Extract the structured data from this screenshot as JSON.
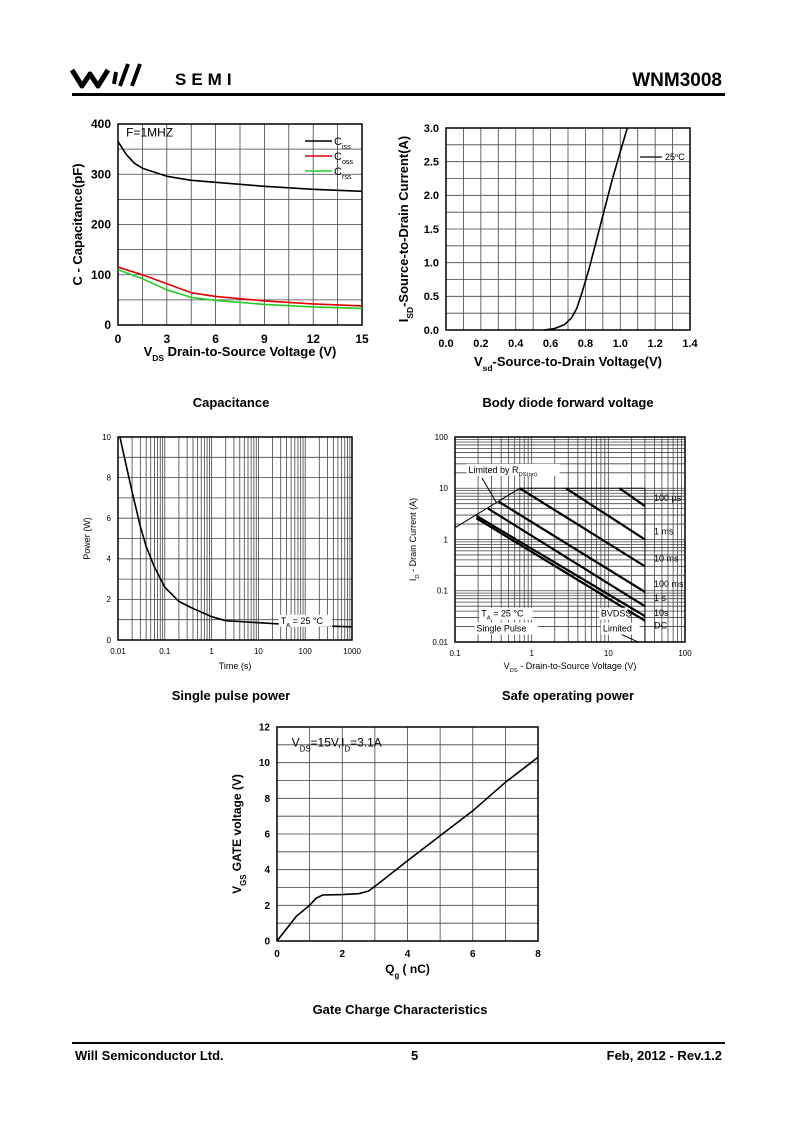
{
  "header": {
    "logo_text": "SEMI",
    "part_number": "WNM3008"
  },
  "footer": {
    "company": "Will Semiconductor Ltd.",
    "page": "5",
    "date_rev": "Feb, 2012 - Rev.1.2"
  },
  "captions": [
    "Capacitance",
    "Body diode forward voltage",
    "Single pulse power",
    "Safe operating power",
    "Gate Charge Characteristics"
  ],
  "chart_data": [
    {
      "type": "line",
      "title": "Capacitance",
      "xlabel": [
        {
          "t": "V"
        },
        {
          "t": "DS",
          "sub": true
        },
        {
          "t": " Drain-to-Source Voltage (V)"
        }
      ],
      "ylabel": [
        {
          "t": "C - Capacitance(pF)"
        }
      ],
      "xscale": "linear",
      "yscale": "linear",
      "xlim": [
        0,
        15
      ],
      "ylim": [
        0,
        400
      ],
      "xticks": [
        0,
        3,
        6,
        9,
        12,
        15
      ],
      "yticks": [
        0,
        100,
        200,
        300,
        400
      ],
      "grid": true,
      "legend": "top-right",
      "annotations": [
        {
          "text": "F=1MHZ",
          "x": 0.5,
          "y": 375
        }
      ],
      "series": [
        {
          "name": "Ciss",
          "label": [
            {
              "t": "C"
            },
            {
              "t": "iss",
              "sub": true
            }
          ],
          "color": "#000000",
          "points": [
            [
              0,
              365
            ],
            [
              0.5,
              340
            ],
            [
              1,
              322
            ],
            [
              1.5,
              312
            ],
            [
              3,
              296
            ],
            [
              4.5,
              288
            ],
            [
              6,
              284
            ],
            [
              9,
              276
            ],
            [
              12,
              270
            ],
            [
              15,
              266
            ]
          ]
        },
        {
          "name": "Coss",
          "label": [
            {
              "t": "C"
            },
            {
              "t": "oss",
              "sub": true
            }
          ],
          "color": "#e00000",
          "points": [
            [
              0,
              115
            ],
            [
              1.5,
              100
            ],
            [
              3,
              82
            ],
            [
              4.5,
              64
            ],
            [
              6,
              57
            ],
            [
              9,
              48
            ],
            [
              12,
              42
            ],
            [
              15,
              38
            ]
          ]
        },
        {
          "name": "Crss",
          "label": [
            {
              "t": "C"
            },
            {
              "t": "rss",
              "sub": true
            }
          ],
          "color": "#22cc22",
          "points": [
            [
              0,
              110
            ],
            [
              1.5,
              92
            ],
            [
              3,
              70
            ],
            [
              4.5,
              55
            ],
            [
              6,
              49
            ],
            [
              9,
              41
            ],
            [
              12,
              36
            ],
            [
              15,
              33
            ]
          ]
        }
      ]
    },
    {
      "type": "line",
      "title": "Body diode forward voltage",
      "xlabel": [
        {
          "t": "V"
        },
        {
          "t": "sd",
          "sub": true
        },
        {
          "t": "-Source-to-Drain Voltage(V)"
        }
      ],
      "ylabel": [
        {
          "t": "I"
        },
        {
          "t": "SD",
          "sub": true
        },
        {
          "t": "-Source-to-Drain Current(A)"
        }
      ],
      "xscale": "linear",
      "yscale": "linear",
      "xlim": [
        0,
        1.4
      ],
      "ylim": [
        0,
        3
      ],
      "xticks": [
        0.0,
        0.2,
        0.4,
        0.6,
        0.8,
        1.0,
        1.2,
        1.4
      ],
      "yticks": [
        0.0,
        0.5,
        1.0,
        1.5,
        2.0,
        2.5,
        3.0
      ],
      "tick_decimals": 1,
      "grid": true,
      "legend": "top-right",
      "series": [
        {
          "name": "25°C",
          "label": [
            {
              "t": "25"
            },
            {
              "t": "o",
              "sup": true
            },
            {
              "t": "C"
            }
          ],
          "color": "#000000",
          "points": [
            [
              0.56,
              0
            ],
            [
              0.62,
              0.02
            ],
            [
              0.68,
              0.08
            ],
            [
              0.72,
              0.18
            ],
            [
              0.75,
              0.32
            ],
            [
              0.78,
              0.55
            ],
            [
              0.82,
              0.9
            ],
            [
              0.86,
              1.3
            ],
            [
              0.9,
              1.7
            ],
            [
              0.95,
              2.2
            ],
            [
              1.0,
              2.65
            ],
            [
              1.04,
              3.0
            ]
          ]
        }
      ]
    },
    {
      "type": "line",
      "title": "Single pulse power",
      "xlabel": [
        {
          "t": "Time (s)"
        }
      ],
      "ylabel": [
        {
          "t": "Power  (W)"
        }
      ],
      "xscale": "log",
      "yscale": "linear",
      "xlim": [
        0.01,
        1000
      ],
      "ylim": [
        0,
        10
      ],
      "xticks": [
        0.01,
        0.1,
        1,
        10,
        100,
        1000
      ],
      "ytick_labels_x": [
        "0.01",
        "0.1",
        "1",
        "10",
        "100",
        "1000"
      ],
      "yticks": [
        0,
        2,
        4,
        6,
        8,
        10
      ],
      "grid": true,
      "annotations": [
        {
          "text": [
            {
              "t": "T"
            },
            {
              "t": "A",
              "sub": true
            },
            {
              "t": " = 25 °C"
            }
          ],
          "x": 30,
          "y": 0.8
        }
      ],
      "series": [
        {
          "name": "Power",
          "color": "#000000",
          "points": [
            [
              0.011,
              10
            ],
            [
              0.015,
              8.6
            ],
            [
              0.02,
              7.3
            ],
            [
              0.03,
              5.6
            ],
            [
              0.04,
              4.6
            ],
            [
              0.06,
              3.6
            ],
            [
              0.1,
              2.6
            ],
            [
              0.2,
              1.9
            ],
            [
              0.4,
              1.55
            ],
            [
              1,
              1.15
            ],
            [
              2,
              0.95
            ],
            [
              10,
              0.85
            ],
            [
              100,
              0.72
            ],
            [
              1000,
              0.65
            ]
          ]
        }
      ]
    },
    {
      "type": "line",
      "title": "Safe operating power",
      "xlabel": [
        {
          "t": "V"
        },
        {
          "t": "DS",
          "sub": true
        },
        {
          "t": " - Drain-to-Source Voltage (V)"
        }
      ],
      "ylabel": [
        {
          "t": "I"
        },
        {
          "t": "D",
          "sub": true
        },
        {
          "t": " - Drain Current (A)"
        }
      ],
      "xscale": "log",
      "yscale": "log",
      "xlim": [
        0.1,
        100
      ],
      "ylim": [
        0.01,
        100
      ],
      "xticks": [
        0.1,
        1,
        10,
        100
      ],
      "yticks": [
        0.01,
        0.1,
        1,
        10,
        100
      ],
      "grid": true,
      "annotations": [
        {
          "text": [
            {
              "t": "Limited by R"
            },
            {
              "t": "DS(on)",
              "sub": true
            }
          ],
          "x": 0.15,
          "y": 20
        },
        {
          "text": [
            {
              "t": "T"
            },
            {
              "t": "A",
              "sub": true
            },
            {
              "t": " = 25 °C"
            }
          ],
          "x": 0.22,
          "y": 0.026
        },
        {
          "text": [
            {
              "t": "Single Pulse"
            }
          ],
          "x": 0.19,
          "y": 0.016
        },
        {
          "text": [
            {
              "t": "BVDSS"
            }
          ],
          "x": 8,
          "y": 0.026
        },
        {
          "text": [
            {
              "t": "Limited"
            }
          ],
          "x": 8.5,
          "y": 0.016
        }
      ],
      "series": [
        {
          "name": "RDS(on) limit",
          "points": [
            [
              0.1,
              1.7
            ],
            [
              0.7,
              10
            ]
          ]
        },
        {
          "name": "Current limit",
          "points": [
            [
              0.7,
              10
            ],
            [
              30,
              10
            ]
          ]
        },
        {
          "name": "BVDSS limit",
          "points": [
            [
              30,
              10
            ],
            [
              30,
              0.01
            ]
          ]
        },
        {
          "name": "100 µs",
          "label": "100 µs",
          "points": [
            [
              14,
              10
            ],
            [
              30,
              4.5
            ]
          ]
        },
        {
          "name": "1 ms",
          "label": "1 ms",
          "points": [
            [
              2.8,
              10
            ],
            [
              30,
              1.0
            ]
          ]
        },
        {
          "name": "10 ms",
          "label": "10 ms",
          "points": [
            [
              0.7,
              10
            ],
            [
              30,
              0.3
            ]
          ]
        },
        {
          "name": "100 ms",
          "label": "100 ms",
          "points": [
            [
              0.37,
              5.5
            ],
            [
              30,
              0.095
            ]
          ]
        },
        {
          "name": "1 s",
          "label": "1 s",
          "points": [
            [
              0.27,
              4
            ],
            [
              30,
              0.05
            ]
          ]
        },
        {
          "name": "10s",
          "label": "10s",
          "points": [
            [
              0.19,
              2.9
            ],
            [
              30,
              0.032
            ]
          ]
        },
        {
          "name": "DC",
          "label": "DC",
          "points": [
            [
              0.19,
              2.6
            ],
            [
              30,
              0.026
            ]
          ]
        }
      ]
    },
    {
      "type": "line",
      "title": "Gate Charge Characteristics",
      "xlabel": [
        {
          "t": "Q"
        },
        {
          "t": "g",
          "sub": true
        },
        {
          "t": " (  nC)"
        }
      ],
      "ylabel": [
        {
          "t": "V"
        },
        {
          "t": "GS",
          "sub": true
        },
        {
          "t": " GATE voltage (V)"
        }
      ],
      "xscale": "linear",
      "yscale": "linear",
      "xlim": [
        0,
        8
      ],
      "ylim": [
        0,
        12
      ],
      "xticks": [
        0,
        2,
        4,
        6,
        8
      ],
      "yticks": [
        0,
        2,
        4,
        6,
        8,
        10,
        12
      ],
      "grid": true,
      "annotations": [
        {
          "text": [
            {
              "t": "V"
            },
            {
              "t": "DS",
              "sub": true
            },
            {
              "t": "=15V,I"
            },
            {
              "t": "D",
              "sub": true
            },
            {
              "t": "=3.1A"
            }
          ],
          "x": 0.45,
          "y": 10.9
        }
      ],
      "series": [
        {
          "name": "VGS",
          "color": "#000000",
          "points": [
            [
              0,
              0
            ],
            [
              0.3,
              0.7
            ],
            [
              0.6,
              1.4
            ],
            [
              0.8,
              1.7
            ],
            [
              1.0,
              2.0
            ],
            [
              1.2,
              2.4
            ],
            [
              1.4,
              2.58
            ],
            [
              2.0,
              2.6
            ],
            [
              2.5,
              2.65
            ],
            [
              2.8,
              2.8
            ],
            [
              3.1,
              3.2
            ],
            [
              4,
              4.5
            ],
            [
              5,
              5.9
            ],
            [
              6,
              7.3
            ],
            [
              7,
              8.9
            ],
            [
              8,
              10.3
            ]
          ]
        }
      ]
    }
  ]
}
